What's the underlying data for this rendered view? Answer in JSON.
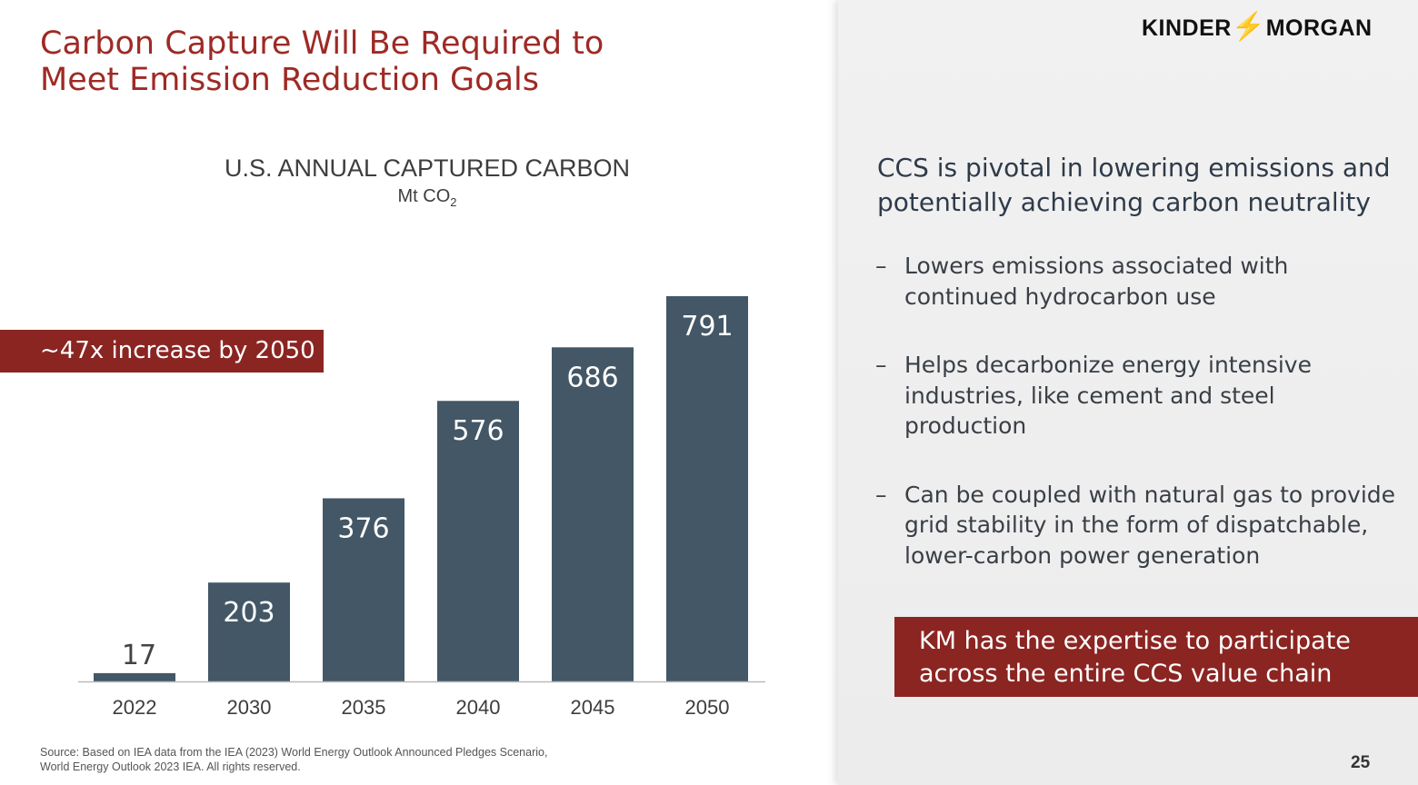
{
  "slide": {
    "title_line1": "Carbon Capture Will Be Required to",
    "title_line2": "Meet Emission Reduction Goals",
    "callout": "~47x increase by 2050",
    "source_line1": "Source:  Based on IEA data from the IEA (2023) World Energy Outlook Announced Pledges Scenario,",
    "source_line2": "World Energy Outlook 2023 IEA. All rights reserved.",
    "logo_text": "KINDER MORGAN",
    "page_number": "25"
  },
  "right_panel": {
    "heading": "CCS is pivotal in lowering emissions and potentially achieving carbon neutrality",
    "bullets": [
      "Lowers emissions associated with continued hydrocarbon use",
      "Helps decarbonize energy intensive industries, like cement and steel production",
      "Can be coupled with natural gas to provide grid stability in the form of dispatchable, lower-carbon power generation"
    ],
    "bullet_marker": "–",
    "highlight": "KM has the expertise to participate across the entire CCS value chain"
  },
  "colors": {
    "accent": "#9e2a25",
    "box": "#8b2522",
    "bar": "#435766"
  },
  "chart_data": {
    "type": "bar",
    "title": "U.S. ANNUAL CAPTURED CARBON",
    "unit": "Mt CO",
    "unit_subscript": "2",
    "categories": [
      "2022",
      "2030",
      "2035",
      "2040",
      "2045",
      "2050"
    ],
    "values": [
      17,
      203,
      376,
      576,
      686,
      791
    ],
    "grid": false,
    "data_labels": true
  }
}
